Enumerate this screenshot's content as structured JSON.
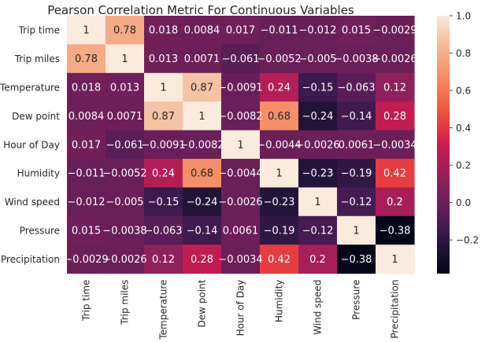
{
  "chart_data": {
    "type": "heatmap",
    "title": "Pearson Correlation Metric For Continuous Variables",
    "xlabel": "",
    "ylabel": "",
    "rows": [
      "Trip time",
      "Trip miles",
      "Temperature",
      "Dew point",
      "Hour of Day",
      "Humidity",
      "Wind speed",
      "Pressure",
      "Precipitation"
    ],
    "columns": [
      "Trip time",
      "Trip miles",
      "Temperature",
      "Dew point",
      "Hour of Day",
      "Humidity",
      "Wind speed",
      "Pressure",
      "Precipitation"
    ],
    "values": [
      [
        1,
        0.78,
        0.018,
        0.0084,
        0.017,
        -0.011,
        -0.012,
        0.015,
        -0.0029
      ],
      [
        0.78,
        1,
        0.013,
        0.0071,
        -0.061,
        -0.0052,
        -0.005,
        -0.0038,
        -0.0026
      ],
      [
        0.018,
        0.013,
        1,
        0.87,
        -0.0091,
        0.24,
        -0.15,
        -0.063,
        0.12
      ],
      [
        0.0084,
        0.0071,
        0.87,
        1,
        -0.0082,
        0.68,
        -0.24,
        -0.14,
        0.28
      ],
      [
        0.017,
        -0.061,
        -0.0091,
        -0.0082,
        1,
        -0.0044,
        -0.0026,
        0.0061,
        -0.0034
      ],
      [
        -0.011,
        -0.0052,
        0.24,
        0.68,
        -0.0044,
        1,
        -0.23,
        -0.19,
        0.42
      ],
      [
        -0.012,
        -0.005,
        -0.15,
        -0.24,
        -0.0026,
        -0.23,
        1,
        -0.12,
        0.2
      ],
      [
        0.015,
        -0.0038,
        -0.063,
        -0.14,
        0.0061,
        -0.19,
        -0.12,
        1,
        -0.38
      ],
      [
        -0.0029,
        -0.0026,
        0.12,
        0.28,
        -0.0034,
        0.42,
        0.2,
        -0.38,
        1
      ]
    ],
    "colorbar": {
      "min": -0.38,
      "max": 1,
      "ticks": [
        -0.2,
        0.0,
        0.2,
        0.4,
        0.6,
        0.8,
        1.0
      ],
      "tick_labels": [
        "−0.2",
        "0.0",
        "0.2",
        "0.4",
        "0.6",
        "0.8",
        "1.0"
      ],
      "colormap": "rocket",
      "stops": [
        "#03051a",
        "#1c1131",
        "#3b1a4e",
        "#611f58",
        "#82205b",
        "#a51f59",
        "#cb1b4f",
        "#e83f3f",
        "#f16445",
        "#f58860",
        "#f6a882",
        "#f6c6a9",
        "#faebdd"
      ]
    },
    "annotation_text_color_dark_cells": "#ffffff",
    "annotation_text_color_light_cells": "#262626",
    "grid": false,
    "legend": "none"
  }
}
